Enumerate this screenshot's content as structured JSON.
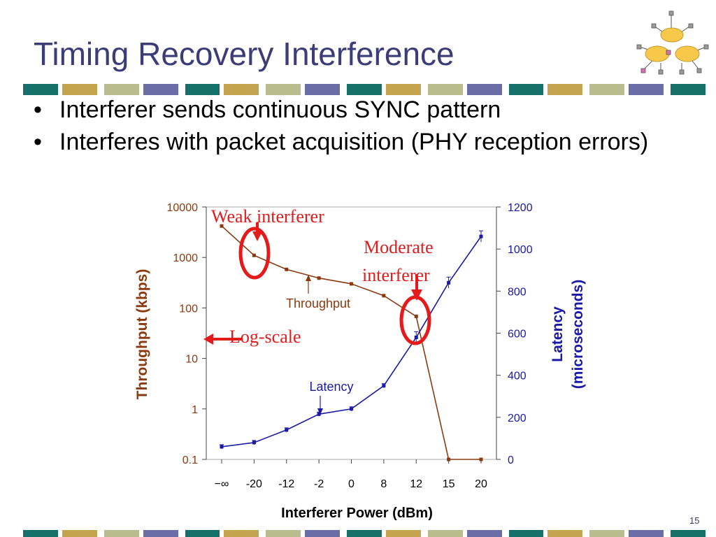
{
  "slide": {
    "title": "Timing Recovery Interference",
    "bullets": [
      "Interferer sends continuous SYNC pattern",
      "Interferes with packet acquisition (PHY reception errors)"
    ],
    "page_number": "15",
    "bullet_glyph": "•"
  },
  "colors": {
    "title": "#3c3c78",
    "throughput": "#8b3a0f",
    "latency": "#1a1aa6",
    "annotation": "#e31b1b",
    "band": [
      "#16706a",
      "#c4a44e",
      "#b9bd8e",
      "#6b6ea6"
    ]
  },
  "annotations": {
    "weak": "Weak interferer",
    "moderate_1": "Moderate",
    "moderate_2": "interferer",
    "logscale": "Log-scale",
    "throughput_label": "Throughput",
    "latency_label": "Latency"
  },
  "chart_data": {
    "type": "line",
    "categories": [
      "−∞",
      "-20",
      "-12",
      "-2",
      "0",
      "8",
      "12",
      "15",
      "20"
    ],
    "xlabel": "Interferer Power (dBm)",
    "ylabel": "Throughput (kbps)",
    "y2label_1": "Latency",
    "y2label_2": "(microseconds)",
    "y_scale": "log",
    "ylim": [
      0.1,
      10000
    ],
    "y_ticks": [
      "10000",
      "1000",
      "100",
      "10",
      "1",
      "0.1"
    ],
    "y2lim": [
      0,
      1200
    ],
    "y2_ticks": [
      "1200",
      "1000",
      "800",
      "600",
      "400",
      "200",
      "0"
    ],
    "grid": false,
    "series": [
      {
        "name": "Throughput",
        "axis": "left",
        "values": [
          4200,
          1100,
          580,
          390,
          300,
          175,
          68,
          0.1,
          0.1
        ]
      },
      {
        "name": "Latency",
        "axis": "right",
        "values": [
          60,
          80,
          140,
          215,
          240,
          350,
          580,
          840,
          1060
        ]
      }
    ]
  }
}
